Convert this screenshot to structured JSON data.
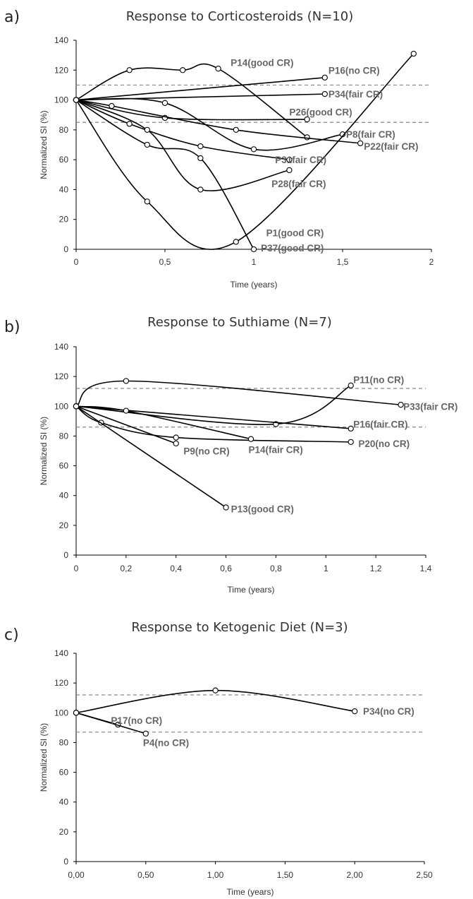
{
  "chart_data": [
    {
      "type": "line",
      "panel_label": "a)",
      "title": "Response to Corticosteroids (N=10)",
      "xlabel": "Time (years)",
      "ylabel": "Normalized SI (%)",
      "xlim": [
        0,
        2
      ],
      "ylim": [
        0,
        140
      ],
      "xticks": [
        0,
        0.5,
        1,
        1.5,
        2
      ],
      "xtick_labels": [
        "0",
        "0,5",
        "1",
        "1,5",
        "2"
      ],
      "yticks": [
        0,
        20,
        40,
        60,
        80,
        100,
        120,
        140
      ],
      "ytick_labels": [
        "0",
        "20",
        "40",
        "60",
        "80",
        "100",
        "120",
        "140"
      ],
      "reference_lines": [
        110,
        85
      ],
      "grid": false,
      "series": [
        {
          "name": "P14(good CR)",
          "points": [
            [
              0,
              100
            ],
            [
              0.3,
              120
            ],
            [
              0.6,
              120
            ],
            [
              0.8,
              121
            ],
            [
              1.3,
              75
            ]
          ]
        },
        {
          "name": "P16(no CR)",
          "points": [
            [
              0,
              100
            ],
            [
              1.4,
              115
            ]
          ]
        },
        {
          "name": "P34(fair CR)",
          "points": [
            [
              0,
              100
            ],
            [
              1.4,
              104
            ]
          ]
        },
        {
          "name": "P26(good CR)",
          "points": [
            [
              0,
              100
            ],
            [
              0.5,
              88
            ],
            [
              1.3,
              87
            ]
          ]
        },
        {
          "name": "P8(fair CR)",
          "points": [
            [
              0,
              100
            ],
            [
              0.5,
              98
            ],
            [
              1.0,
              67
            ],
            [
              1.5,
              77
            ]
          ]
        },
        {
          "name": "P22(fair CR)",
          "points": [
            [
              0,
              100
            ],
            [
              0.2,
              96
            ],
            [
              0.9,
              80
            ],
            [
              1.6,
              71
            ]
          ]
        },
        {
          "name": "P31(fair CR)",
          "points": [
            [
              0,
              100
            ],
            [
              0.3,
              84
            ],
            [
              0.7,
              69
            ],
            [
              1.2,
              60
            ]
          ]
        },
        {
          "name": "P28(fair CR)",
          "points": [
            [
              0,
              100
            ],
            [
              0.4,
              80
            ],
            [
              0.7,
              40
            ],
            [
              1.2,
              53
            ]
          ]
        },
        {
          "name": "P1(good CR)",
          "points": [
            [
              0,
              100
            ],
            [
              0.4,
              70
            ],
            [
              0.7,
              61
            ],
            [
              1.0,
              0
            ]
          ]
        },
        {
          "name": "P37(good CR)",
          "points": [
            [
              0,
              100
            ],
            [
              0.4,
              32
            ],
            [
              0.9,
              5
            ],
            [
              1.9,
              131
            ]
          ]
        }
      ],
      "labels": [
        {
          "text": "P14(good CR)",
          "x": 0.87,
          "y": 125
        },
        {
          "text": "P16(no CR)",
          "x": 1.42,
          "y": 120
        },
        {
          "text": "P34(fair CR)",
          "x": 1.42,
          "y": 104
        },
        {
          "text": "P26(good CR)",
          "x": 1.2,
          "y": 92
        },
        {
          "text": "P8(fair CR)",
          "x": 1.52,
          "y": 77
        },
        {
          "text": "P22(fair CR)",
          "x": 1.62,
          "y": 69
        },
        {
          "text": "P31fair CR)",
          "x": 1.12,
          "y": 60
        },
        {
          "text": "P28(fair CR)",
          "x": 1.1,
          "y": 44
        },
        {
          "text": "P1(good CR)",
          "x": 1.07,
          "y": 11
        },
        {
          "text": "P37(good CR)",
          "x": 1.04,
          "y": 1
        }
      ]
    },
    {
      "type": "line",
      "panel_label": "b)",
      "title": "Response to Suthiame (N=7)",
      "xlabel": "Time (years)",
      "ylabel": "Normalized SI (%)",
      "xlim": [
        0,
        1.4
      ],
      "ylim": [
        0,
        140
      ],
      "xticks": [
        0,
        0.2,
        0.4,
        0.6,
        0.8,
        1,
        1.2,
        1.4
      ],
      "xtick_labels": [
        "0",
        "0,2",
        "0,4",
        "0,6",
        "0,8",
        "1",
        "1,2",
        "1,4"
      ],
      "yticks": [
        0,
        20,
        40,
        60,
        80,
        100,
        120,
        140
      ],
      "ytick_labels": [
        "0",
        "20",
        "40",
        "60",
        "80",
        "100",
        "120",
        "140"
      ],
      "reference_lines": [
        112,
        86
      ],
      "grid": false,
      "series": [
        {
          "name": "P11(no CR)",
          "points": [
            [
              0,
              100
            ],
            [
              0.8,
              88
            ],
            [
              1.1,
              114
            ]
          ]
        },
        {
          "name": "P33(fair CR)",
          "points": [
            [
              0,
              100
            ],
            [
              0.2,
              117
            ],
            [
              1.3,
              101
            ]
          ]
        },
        {
          "name": "P16(fair CR)",
          "points": [
            [
              0,
              100
            ],
            [
              1.1,
              85
            ]
          ]
        },
        {
          "name": "P20(no CR)",
          "points": [
            [
              0,
              100
            ],
            [
              0.1,
              89
            ],
            [
              0.4,
              79
            ],
            [
              1.1,
              76
            ]
          ]
        },
        {
          "name": "P14(fair CR)",
          "points": [
            [
              0,
              100
            ],
            [
              0.2,
              97
            ],
            [
              0.7,
              78
            ]
          ]
        },
        {
          "name": "P9(no CR)",
          "points": [
            [
              0,
              100
            ],
            [
              0.4,
              75
            ]
          ]
        },
        {
          "name": "P13(good CR)",
          "points": [
            [
              0,
              100
            ],
            [
              0.6,
              32
            ]
          ]
        }
      ],
      "labels": [
        {
          "text": "P11(no CR)",
          "x": 1.11,
          "y": 118
        },
        {
          "text": "P33(fair CR)",
          "x": 1.31,
          "y": 100
        },
        {
          "text": "P16(fair CR)",
          "x": 1.11,
          "y": 88
        },
        {
          "text": "P20(no CR)",
          "x": 1.13,
          "y": 75
        },
        {
          "text": "P14(fair CR)",
          "x": 0.69,
          "y": 71
        },
        {
          "text": "P9(no CR)",
          "x": 0.43,
          "y": 70
        },
        {
          "text": "P13(good CR)",
          "x": 0.62,
          "y": 31
        }
      ]
    },
    {
      "type": "line",
      "panel_label": "c)",
      "title": "Response to Ketogenic Diet (N=3)",
      "xlabel": "Time (years)",
      "ylabel": "Normalized SI (%)",
      "xlim": [
        0,
        2.5
      ],
      "ylim": [
        0,
        140
      ],
      "xticks": [
        0,
        0.5,
        1,
        1.5,
        2,
        2.5
      ],
      "xtick_labels": [
        "0,00",
        "0,50",
        "1,00",
        "1,50",
        "2,00",
        "2,50"
      ],
      "yticks": [
        0,
        20,
        40,
        60,
        80,
        100,
        120,
        140
      ],
      "ytick_labels": [
        "0",
        "20",
        "40",
        "60",
        "80",
        "100",
        "120",
        "140"
      ],
      "reference_lines": [
        112,
        87
      ],
      "grid": false,
      "series": [
        {
          "name": "P34(no CR)",
          "points": [
            [
              0,
              100
            ],
            [
              1.0,
              115
            ],
            [
              2.0,
              101
            ]
          ]
        },
        {
          "name": "P17(no CR)",
          "points": [
            [
              0,
              100
            ],
            [
              0.3,
              92
            ]
          ]
        },
        {
          "name": "P4(no CR)",
          "points": [
            [
              0,
              100
            ],
            [
              0.5,
              86
            ]
          ]
        }
      ],
      "labels": [
        {
          "text": "P17(no CR)",
          "x": 0.25,
          "y": 95
        },
        {
          "text": "P4(no CR)",
          "x": 0.48,
          "y": 80
        },
        {
          "text": "P34(no CR)",
          "x": 2.06,
          "y": 101
        }
      ]
    }
  ]
}
